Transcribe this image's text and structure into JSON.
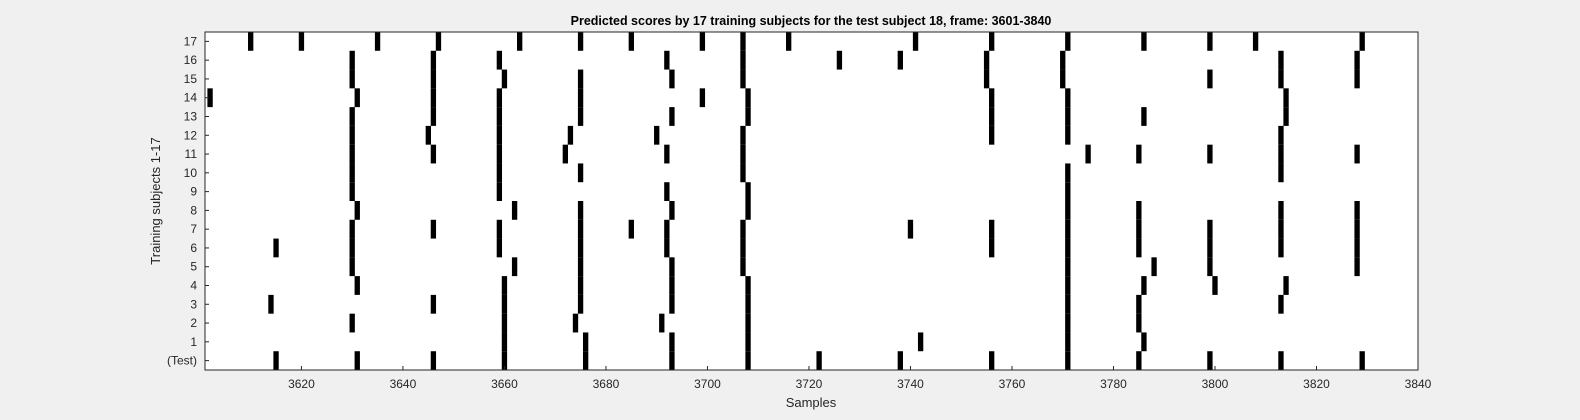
{
  "colors": {
    "background": "#f0f0f0",
    "axes_bg": "#ffffff",
    "mark": "#000000",
    "axis": "#262626"
  },
  "chart_data": {
    "type": "heatmap",
    "title": "Predicted scores by 17 training subjects for the test subject 18, frame: 3601-3840",
    "xlabel": "Samples",
    "ylabel": "Training subjects 1-17",
    "xlim": [
      3601,
      3840
    ],
    "xticks": [
      3620,
      3640,
      3660,
      3680,
      3700,
      3720,
      3740,
      3760,
      3780,
      3800,
      3820,
      3840
    ],
    "y_categories": [
      "(Test)",
      "1",
      "2",
      "3",
      "4",
      "5",
      "6",
      "7",
      "8",
      "9",
      "10",
      "11",
      "12",
      "13",
      "14",
      "15",
      "16",
      "17"
    ],
    "grid": false,
    "legend": "none",
    "rows": [
      {
        "label": "17",
        "x": [
          3610,
          3620,
          3635,
          3647,
          3663,
          3675,
          3685,
          3699,
          3707,
          3716,
          3741,
          3756,
          3771,
          3786,
          3799,
          3808,
          3829
        ]
      },
      {
        "label": "16",
        "x": [
          3630,
          3646,
          3659,
          3692,
          3707,
          3726,
          3738,
          3755,
          3770,
          3813,
          3828
        ]
      },
      {
        "label": "15",
        "x": [
          3630,
          3646,
          3660,
          3675,
          3693,
          3707,
          3755,
          3770,
          3799,
          3813,
          3828
        ]
      },
      {
        "label": "14",
        "x": [
          3602,
          3631,
          3646,
          3659,
          3675,
          3699,
          3708,
          3756,
          3771,
          3814
        ]
      },
      {
        "label": "13",
        "x": [
          3630,
          3646,
          3659,
          3675,
          3693,
          3708,
          3756,
          3771,
          3786,
          3814
        ]
      },
      {
        "label": "12",
        "x": [
          3630,
          3645,
          3659,
          3673,
          3690,
          3707,
          3756,
          3771,
          3813
        ]
      },
      {
        "label": "11",
        "x": [
          3630,
          3646,
          3659,
          3672,
          3692,
          3707,
          3775,
          3785,
          3799,
          3813,
          3828
        ]
      },
      {
        "label": "10",
        "x": [
          3630,
          3659,
          3675,
          3707,
          3771,
          3813
        ]
      },
      {
        "label": "9",
        "x": [
          3630,
          3659,
          3692,
          3708,
          3771
        ]
      },
      {
        "label": "8",
        "x": [
          3631,
          3662,
          3675,
          3693,
          3708,
          3771,
          3785,
          3813,
          3828
        ]
      },
      {
        "label": "7",
        "x": [
          3630,
          3646,
          3659,
          3675,
          3685,
          3692,
          3707,
          3740,
          3756,
          3771,
          3785,
          3799,
          3813,
          3828
        ]
      },
      {
        "label": "6",
        "x": [
          3615,
          3630,
          3659,
          3675,
          3692,
          3707,
          3756,
          3771,
          3785,
          3799,
          3813,
          3828
        ]
      },
      {
        "label": "5",
        "x": [
          3630,
          3662,
          3675,
          3693,
          3707,
          3771,
          3788,
          3799,
          3828
        ]
      },
      {
        "label": "4",
        "x": [
          3631,
          3660,
          3675,
          3693,
          3708,
          3771,
          3786,
          3800,
          3814
        ]
      },
      {
        "label": "3",
        "x": [
          3614,
          3646,
          3660,
          3675,
          3693,
          3708,
          3771,
          3785,
          3813
        ]
      },
      {
        "label": "2",
        "x": [
          3630,
          3660,
          3674,
          3691,
          3708,
          3771,
          3785
        ]
      },
      {
        "label": "1",
        "x": [
          3660,
          3676,
          3693,
          3708,
          3742,
          3771,
          3786
        ]
      },
      {
        "label": "(Test)",
        "x": [
          3615,
          3631,
          3646,
          3660,
          3676,
          3693,
          3708,
          3722,
          3738,
          3756,
          3771,
          3785,
          3799,
          3813,
          3829
        ]
      }
    ]
  }
}
